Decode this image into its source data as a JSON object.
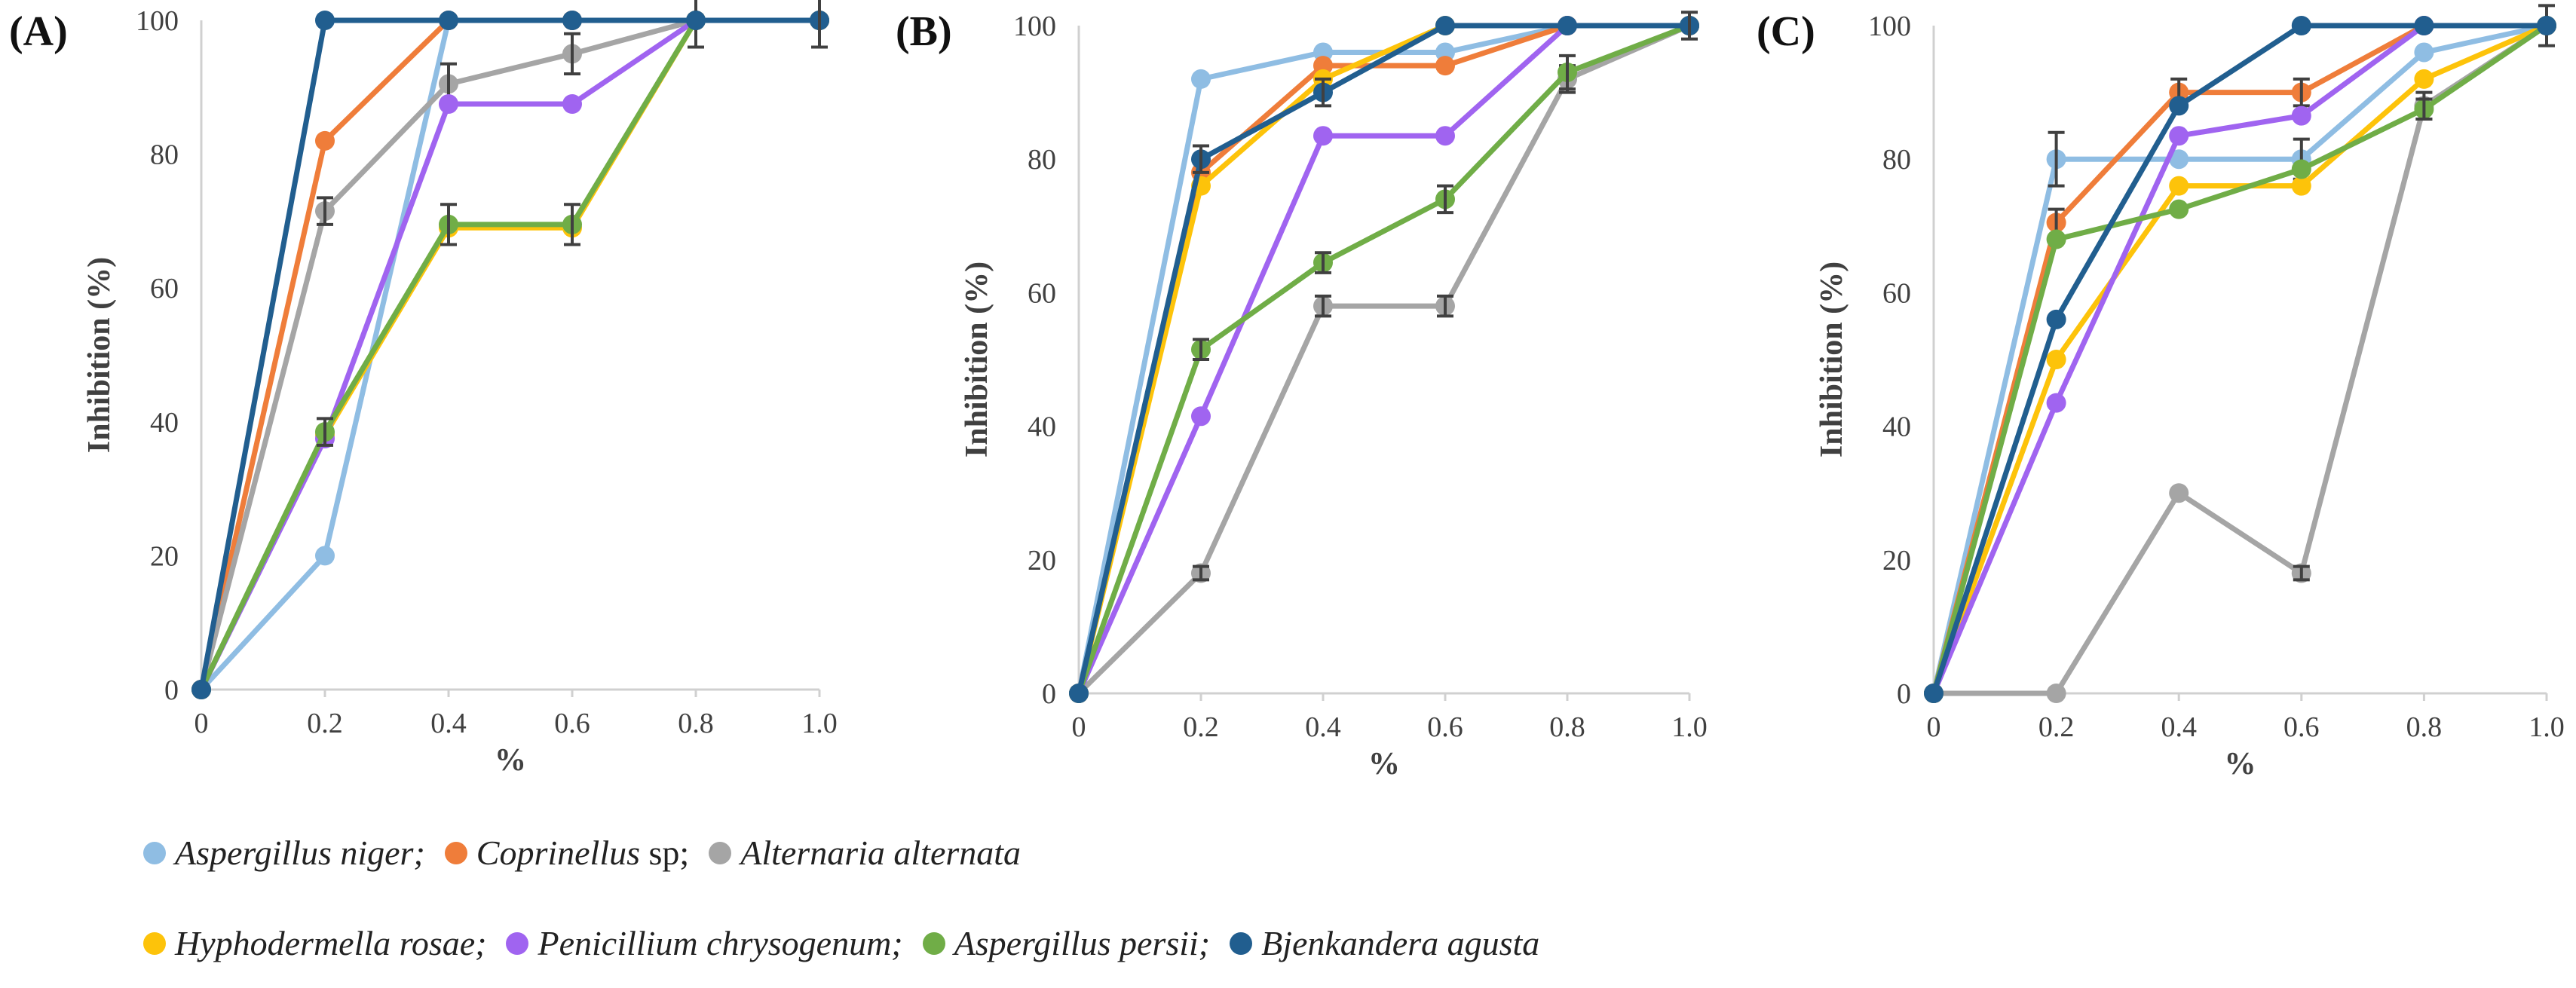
{
  "colors": {
    "axis": "#d0d0d0",
    "errorbar": "#404040",
    "text": "#404040"
  },
  "icons": {
    "legend_marker": "filled-circle-marker-icon"
  },
  "legend": [
    {
      "genus_text": "Aspergillus niger;",
      "suffix": "",
      "color": "#8fbde3"
    },
    {
      "genus_text": "Coprinellus",
      "suffix": " sp;",
      "color": "#ef7d3a"
    },
    {
      "genus_text": "Alternaria alternata",
      "suffix": "",
      "color": "#a5a5a5"
    },
    {
      "genus_text": "Hyphodermella rosae;",
      "suffix": "",
      "color": "#fdc30a"
    },
    {
      "genus_text": "Penicillium chrysogenum;",
      "suffix": "",
      "color": "#a064f0"
    },
    {
      "genus_text": "Aspergillus persii;",
      "suffix": "",
      "color": "#70ad47"
    },
    {
      "genus_text": "Bjenkandera agusta",
      "suffix": "",
      "color": "#215e8f"
    }
  ],
  "chart_data": [
    {
      "type": "line",
      "panel_label": "(A)",
      "xlabel": "%",
      "ylabel": "Inhibition  (%)",
      "x": [
        0,
        0.2,
        0.4,
        0.6,
        0.8,
        1.0
      ],
      "x_tick_labels": [
        "0",
        "0.2",
        "0.4",
        "0.6",
        "0.8",
        "1.0"
      ],
      "y_tick_labels": [
        "0",
        "20",
        "40",
        "60",
        "80",
        "100"
      ],
      "xlim": [
        0,
        1.0
      ],
      "ylim": [
        0,
        100
      ],
      "series": [
        {
          "name": "Aspergillus niger",
          "color": "#8fbde3",
          "values": [
            0,
            20,
            100,
            100,
            100,
            100
          ]
        },
        {
          "name": "Coprinellus sp",
          "color": "#ef7d3a",
          "values": [
            0,
            82,
            100,
            100,
            100,
            100
          ]
        },
        {
          "name": "Alternaria alternata",
          "color": "#a5a5a5",
          "values": [
            0,
            71.5,
            90.5,
            95,
            100,
            100
          ],
          "errors": [
            0,
            2,
            3,
            3,
            0,
            0
          ]
        },
        {
          "name": "Hyphodermella rosae",
          "color": "#fdc30a",
          "values": [
            0,
            38,
            69,
            69,
            100,
            100
          ]
        },
        {
          "name": "Penicillium chrysogenum",
          "color": "#a064f0",
          "values": [
            0,
            37.5,
            87.5,
            87.5,
            100,
            100
          ]
        },
        {
          "name": "Aspergillus persii",
          "color": "#70ad47",
          "values": [
            0,
            38.5,
            69.5,
            69.5,
            100,
            100
          ],
          "errors": [
            0,
            2,
            3,
            3,
            4,
            0
          ]
        },
        {
          "name": "Bjenkandera agusta",
          "color": "#215e8f",
          "values": [
            0,
            100,
            100,
            100,
            100,
            100
          ],
          "errors": [
            0,
            0,
            0,
            0,
            0,
            4
          ]
        }
      ]
    },
    {
      "type": "line",
      "panel_label": "(B)",
      "xlabel": "%",
      "ylabel": "Inhibition  (%)",
      "x": [
        0,
        0.2,
        0.4,
        0.6,
        0.8,
        1.0
      ],
      "x_tick_labels": [
        "0",
        "0.2",
        "0.4",
        "0.6",
        "0.8",
        "1.0"
      ],
      "y_tick_labels": [
        "0",
        "20",
        "40",
        "60",
        "80",
        "100"
      ],
      "xlim": [
        0,
        1.0
      ],
      "ylim": [
        0,
        100
      ],
      "series": [
        {
          "name": "Aspergillus niger",
          "color": "#8fbde3",
          "values": [
            0,
            92,
            96,
            96,
            100,
            100
          ]
        },
        {
          "name": "Coprinellus sp",
          "color": "#ef7d3a",
          "values": [
            0,
            78,
            94,
            94,
            100,
            100
          ]
        },
        {
          "name": "Alternaria alternata",
          "color": "#a5a5a5",
          "values": [
            0,
            18,
            58,
            58,
            92,
            100
          ],
          "errors": [
            0,
            1,
            1.5,
            1.5,
            2,
            0
          ]
        },
        {
          "name": "Hyphodermella rosae",
          "color": "#fdc30a",
          "values": [
            0,
            76,
            92,
            100,
            100,
            100
          ]
        },
        {
          "name": "Penicillium chrysogenum",
          "color": "#a064f0",
          "values": [
            0,
            41.5,
            83.5,
            83.5,
            100,
            100
          ]
        },
        {
          "name": "Aspergillus persii",
          "color": "#70ad47",
          "values": [
            0,
            51.5,
            64.5,
            74,
            93,
            100
          ],
          "errors": [
            0,
            1.5,
            1.5,
            2,
            2.5,
            0
          ]
        },
        {
          "name": "Bjenkandera agusta",
          "color": "#215e8f",
          "values": [
            0,
            80,
            90,
            100,
            100,
            100
          ],
          "errors": [
            0,
            2,
            2,
            0,
            0,
            2
          ]
        }
      ]
    },
    {
      "type": "line",
      "panel_label": "(C)",
      "xlabel": "%",
      "ylabel": "Inhibition  (%)",
      "x": [
        0,
        0.2,
        0.4,
        0.6,
        0.8,
        1.0
      ],
      "x_tick_labels": [
        "0",
        "0.2",
        "0.4",
        "0.6",
        "0.8",
        "1.0"
      ],
      "y_tick_labels": [
        "0",
        "20",
        "40",
        "60",
        "80",
        "100"
      ],
      "xlim": [
        0,
        1.0
      ],
      "ylim": [
        0,
        100
      ],
      "series": [
        {
          "name": "Aspergillus niger",
          "color": "#8fbde3",
          "values": [
            0,
            80,
            80,
            80,
            96,
            100
          ],
          "errors": [
            0,
            4,
            0,
            3,
            0,
            0
          ]
        },
        {
          "name": "Coprinellus sp",
          "color": "#ef7d3a",
          "values": [
            0,
            70.5,
            90,
            90,
            100,
            100
          ],
          "errors": [
            0,
            2,
            2,
            2,
            0,
            0
          ]
        },
        {
          "name": "Alternaria alternata",
          "color": "#a5a5a5",
          "values": [
            0,
            0,
            30,
            18,
            88,
            100
          ],
          "errors": [
            0,
            0,
            0,
            1,
            2,
            0
          ]
        },
        {
          "name": "Hyphodermella rosae",
          "color": "#fdc30a",
          "values": [
            0,
            50,
            76,
            76,
            92,
            100
          ]
        },
        {
          "name": "Penicillium chrysogenum",
          "color": "#a064f0",
          "values": [
            0,
            43.5,
            83.5,
            86.5,
            100,
            100
          ]
        },
        {
          "name": "Aspergillus persii",
          "color": "#70ad47",
          "values": [
            0,
            68,
            72.5,
            78.5,
            87.5,
            100
          ],
          "errors": [
            0,
            0,
            0,
            0,
            1.5,
            3
          ]
        },
        {
          "name": "Bjenkandera agusta",
          "color": "#215e8f",
          "values": [
            0,
            56,
            88,
            100,
            100,
            100
          ]
        }
      ]
    }
  ]
}
